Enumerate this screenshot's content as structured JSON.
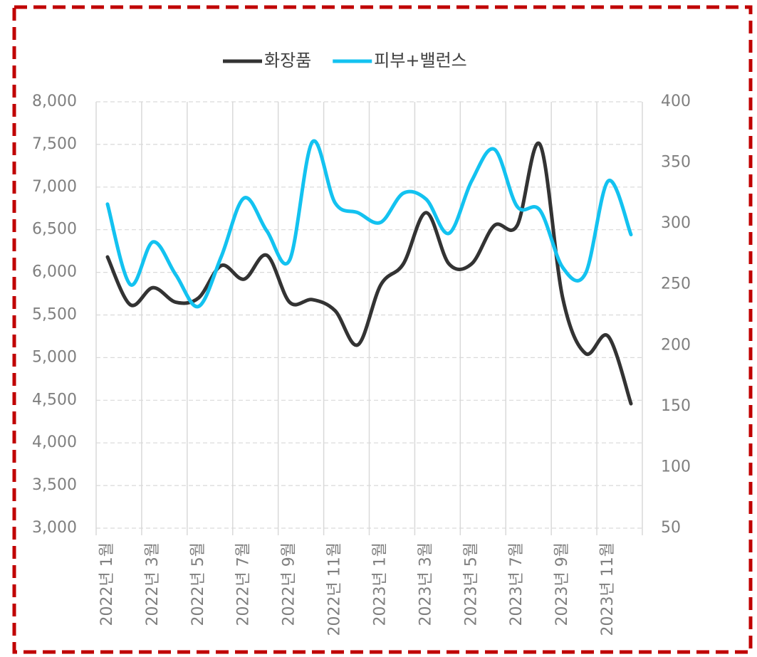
{
  "chart_data": {
    "type": "line",
    "categories": [
      "2022년 1월",
      null,
      "2022년 3월",
      null,
      "2022년 5월",
      null,
      "2022년 7월",
      null,
      "2022년 9월",
      null,
      "2022년 11월",
      null,
      "2023년 1월",
      null,
      "2023년 3월",
      null,
      "2023년 5월",
      null,
      "2023년 7월",
      null,
      "2023년 9월",
      null,
      "2023년 11월",
      null
    ],
    "series": [
      {
        "name": "화장품",
        "color": "#333333",
        "values": [
          6180,
          5620,
          5820,
          5650,
          5700,
          6080,
          5920,
          6200,
          5650,
          5680,
          5550,
          5150,
          5850,
          6100,
          6700,
          6100,
          6100,
          6550,
          6550,
          7500,
          5700,
          5050,
          5250,
          4460
        ]
      },
      {
        "name": "피부+밸런스",
        "color": "#13c2f0",
        "axis": "y2",
        "values": [
          316,
          250,
          285,
          258,
          232,
          273,
          321,
          294,
          270,
          367,
          317,
          309,
          301,
          325,
          320,
          292,
          335,
          361,
          314,
          311,
          264,
          259,
          335,
          291
        ]
      }
    ],
    "ylim": [
      3000,
      8000
    ],
    "yticks": [
      {
        "value": 3000,
        "label": "3,000"
      },
      {
        "value": 3500,
        "label": "3,500"
      },
      {
        "value": 4000,
        "label": "4,000"
      },
      {
        "value": 4500,
        "label": "4,500"
      },
      {
        "value": 5000,
        "label": "5,000"
      },
      {
        "value": 5500,
        "label": "5,500"
      },
      {
        "value": 6000,
        "label": "6,000"
      },
      {
        "value": 6500,
        "label": "6,500"
      },
      {
        "value": 7000,
        "label": "7,000"
      },
      {
        "value": 7500,
        "label": "7,500"
      },
      {
        "value": 8000,
        "label": "8,000"
      }
    ],
    "y2lim": [
      50,
      400
    ],
    "y2ticks": [
      50,
      100,
      150,
      200,
      250,
      300,
      350,
      400
    ],
    "grid": true,
    "legend": "top"
  }
}
